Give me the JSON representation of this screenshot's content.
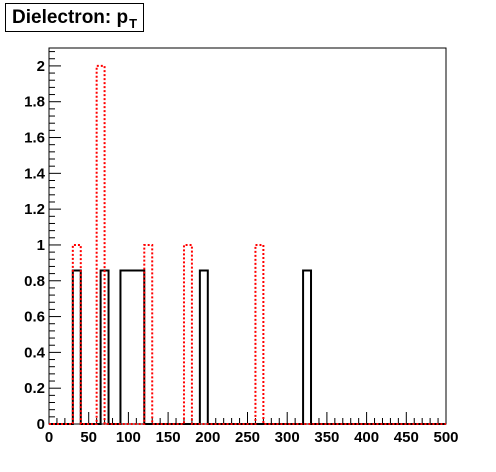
{
  "chart_data": {
    "type": "histogram",
    "title": "Dielectron: p",
    "title_subscript": "T",
    "xlim": [
      0,
      500
    ],
    "ylim": [
      0,
      2.1
    ],
    "x_ticks": [
      0,
      50,
      100,
      150,
      200,
      250,
      300,
      350,
      400,
      450,
      500
    ],
    "x_tick_labels": [
      "0",
      "50",
      "100",
      "150",
      "200",
      "250",
      "300",
      "350",
      "400",
      "450",
      "500"
    ],
    "y_ticks": [
      0,
      0.2,
      0.4,
      0.6,
      0.8,
      1,
      1.2,
      1.4,
      1.6,
      1.8,
      2
    ],
    "y_tick_labels": [
      "0",
      "0.2",
      "0.4",
      "0.6",
      "0.8",
      "1",
      "1.2",
      "1.4",
      "1.6",
      "1.8",
      "2"
    ],
    "grid": false,
    "series": [
      {
        "style": "solid",
        "color": "#000000",
        "bin_edges": [
          0,
          30,
          40,
          65,
          75,
          90,
          120,
          190,
          200,
          320,
          330,
          500
        ],
        "values": [
          0,
          0.857,
          0,
          0.857,
          0,
          0.857,
          0,
          0.857,
          0,
          0.857,
          0
        ]
      },
      {
        "style": "dashed",
        "color": "#ff0000",
        "bin_edges": [
          0,
          30,
          40,
          60,
          70,
          120,
          130,
          170,
          180,
          260,
          270,
          500
        ],
        "values": [
          0,
          1,
          0,
          2,
          0,
          1,
          0,
          1,
          0,
          1,
          0
        ]
      }
    ]
  }
}
